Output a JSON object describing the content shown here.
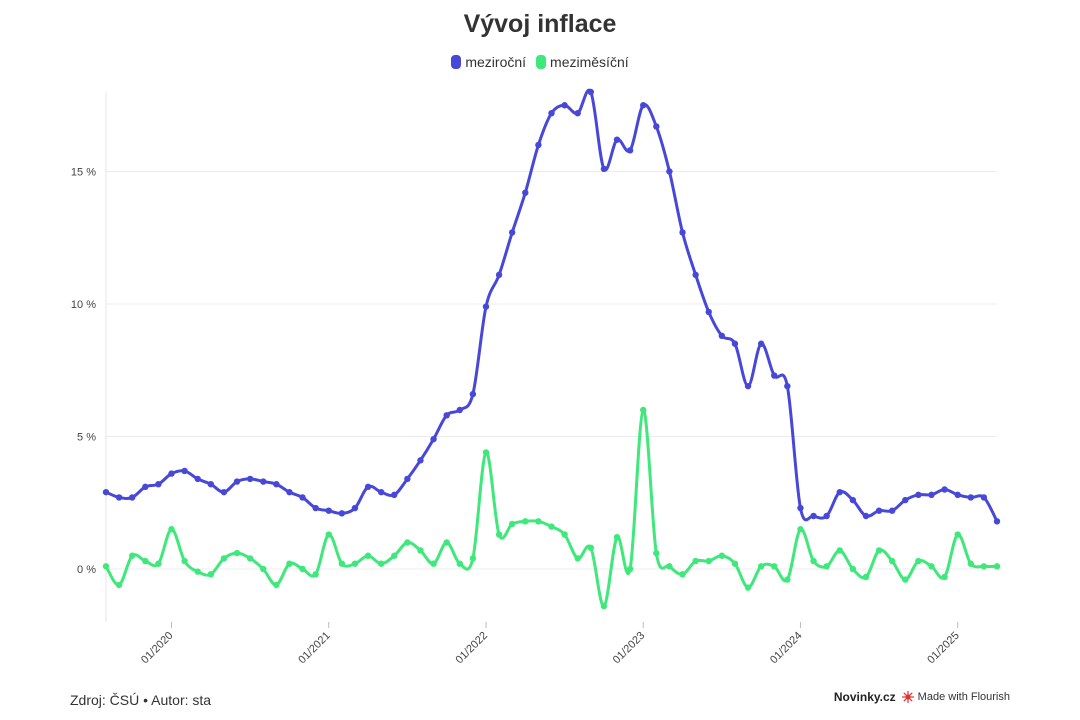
{
  "chart_data": {
    "type": "line",
    "title": "Vývoj inflace",
    "xlabel": "",
    "ylabel": "",
    "x_start": "2019-08",
    "x_ticks": [
      "01/2020",
      "01/2021",
      "01/2022",
      "01/2023",
      "01/2024",
      "01/2025"
    ],
    "y_ticks": [
      "0 %",
      "5 %",
      "10 %",
      "15 %"
    ],
    "ylim": [
      -2,
      18
    ],
    "grid": true,
    "legend_position": "top-center",
    "series": [
      {
        "name": "meziroční",
        "color": "#4848d8",
        "values": [
          2.9,
          2.7,
          2.7,
          3.1,
          3.2,
          3.6,
          3.7,
          3.4,
          3.2,
          2.9,
          3.3,
          3.4,
          3.3,
          3.2,
          2.9,
          2.7,
          2.3,
          2.2,
          2.1,
          2.3,
          3.1,
          2.9,
          2.8,
          3.4,
          4.1,
          4.9,
          5.8,
          6.0,
          6.6,
          9.9,
          11.1,
          12.7,
          14.2,
          16.0,
          17.2,
          17.5,
          17.2,
          18.0,
          15.1,
          16.2,
          15.8,
          17.5,
          16.7,
          15.0,
          12.7,
          11.1,
          9.7,
          8.8,
          8.5,
          6.9,
          8.5,
          7.3,
          6.9,
          2.3,
          2.0,
          2.0,
          2.9,
          2.6,
          2.0,
          2.2,
          2.2,
          2.6,
          2.8,
          2.8,
          3.0,
          2.8,
          2.7,
          2.7,
          1.8
        ]
      },
      {
        "name": "meziměsíční",
        "color": "#3ee87a",
        "values": [
          0.1,
          -0.6,
          0.5,
          0.3,
          0.2,
          1.5,
          0.3,
          -0.1,
          -0.2,
          0.4,
          0.6,
          0.4,
          0.0,
          -0.6,
          0.2,
          0.0,
          -0.2,
          1.3,
          0.2,
          0.2,
          0.5,
          0.2,
          0.5,
          1.0,
          0.7,
          0.2,
          1.0,
          0.2,
          0.4,
          4.4,
          1.3,
          1.7,
          1.8,
          1.8,
          1.6,
          1.3,
          0.4,
          0.8,
          -1.4,
          1.2,
          0.0,
          6.0,
          0.6,
          0.1,
          -0.2,
          0.3,
          0.3,
          0.5,
          0.2,
          -0.7,
          0.1,
          0.1,
          -0.4,
          1.5,
          0.3,
          0.1,
          0.7,
          0.0,
          -0.3,
          0.7,
          0.3,
          -0.4,
          0.3,
          0.1,
          -0.3,
          1.3,
          0.2,
          0.1,
          0.1
        ]
      }
    ]
  },
  "footer": {
    "source": "Zdroj: ČSÚ • Autor: sta",
    "brand": "Novinky.cz",
    "flourish": "Made with Flourish"
  }
}
